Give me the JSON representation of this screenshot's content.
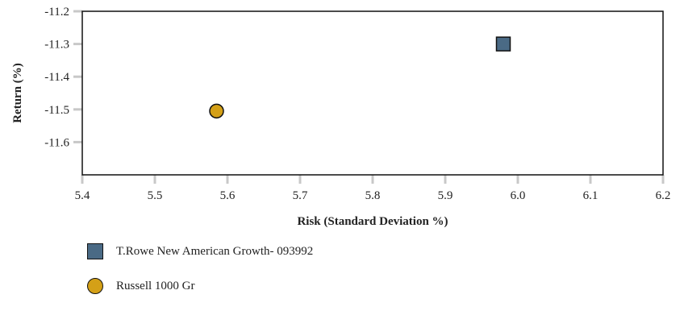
{
  "chart_data": {
    "type": "scatter",
    "xlabel": "Risk (Standard Deviation %)",
    "ylabel": "Return (%)",
    "xlim": [
      5.4,
      6.2
    ],
    "ylim": [
      -11.7,
      -11.2
    ],
    "x_ticks": [
      5.4,
      5.5,
      5.6,
      5.7,
      5.8,
      5.9,
      6.0,
      6.1,
      6.2
    ],
    "x_tick_labels": [
      "5.4",
      "5.5",
      "5.6",
      "5.7",
      "5.8",
      "5.9",
      "6.0",
      "6.1",
      "6.2"
    ],
    "y_ticks": [
      -11.2,
      -11.3,
      -11.4,
      -11.5,
      -11.6
    ],
    "y_tick_labels": [
      "-11.2",
      "-11.3",
      "-11.4",
      "-11.5",
      "-11.6"
    ],
    "grid": false,
    "legend_position": "bottom-left",
    "series": [
      {
        "name": "T.Rowe New American Growth- 093992",
        "marker": "square",
        "color": "#4a6a85",
        "points": [
          {
            "x": 5.98,
            "y": -11.3
          }
        ]
      },
      {
        "name": "Russell 1000 Gr",
        "marker": "circle",
        "color": "#d4a017",
        "points": [
          {
            "x": 5.585,
            "y": -11.505
          }
        ]
      }
    ]
  }
}
